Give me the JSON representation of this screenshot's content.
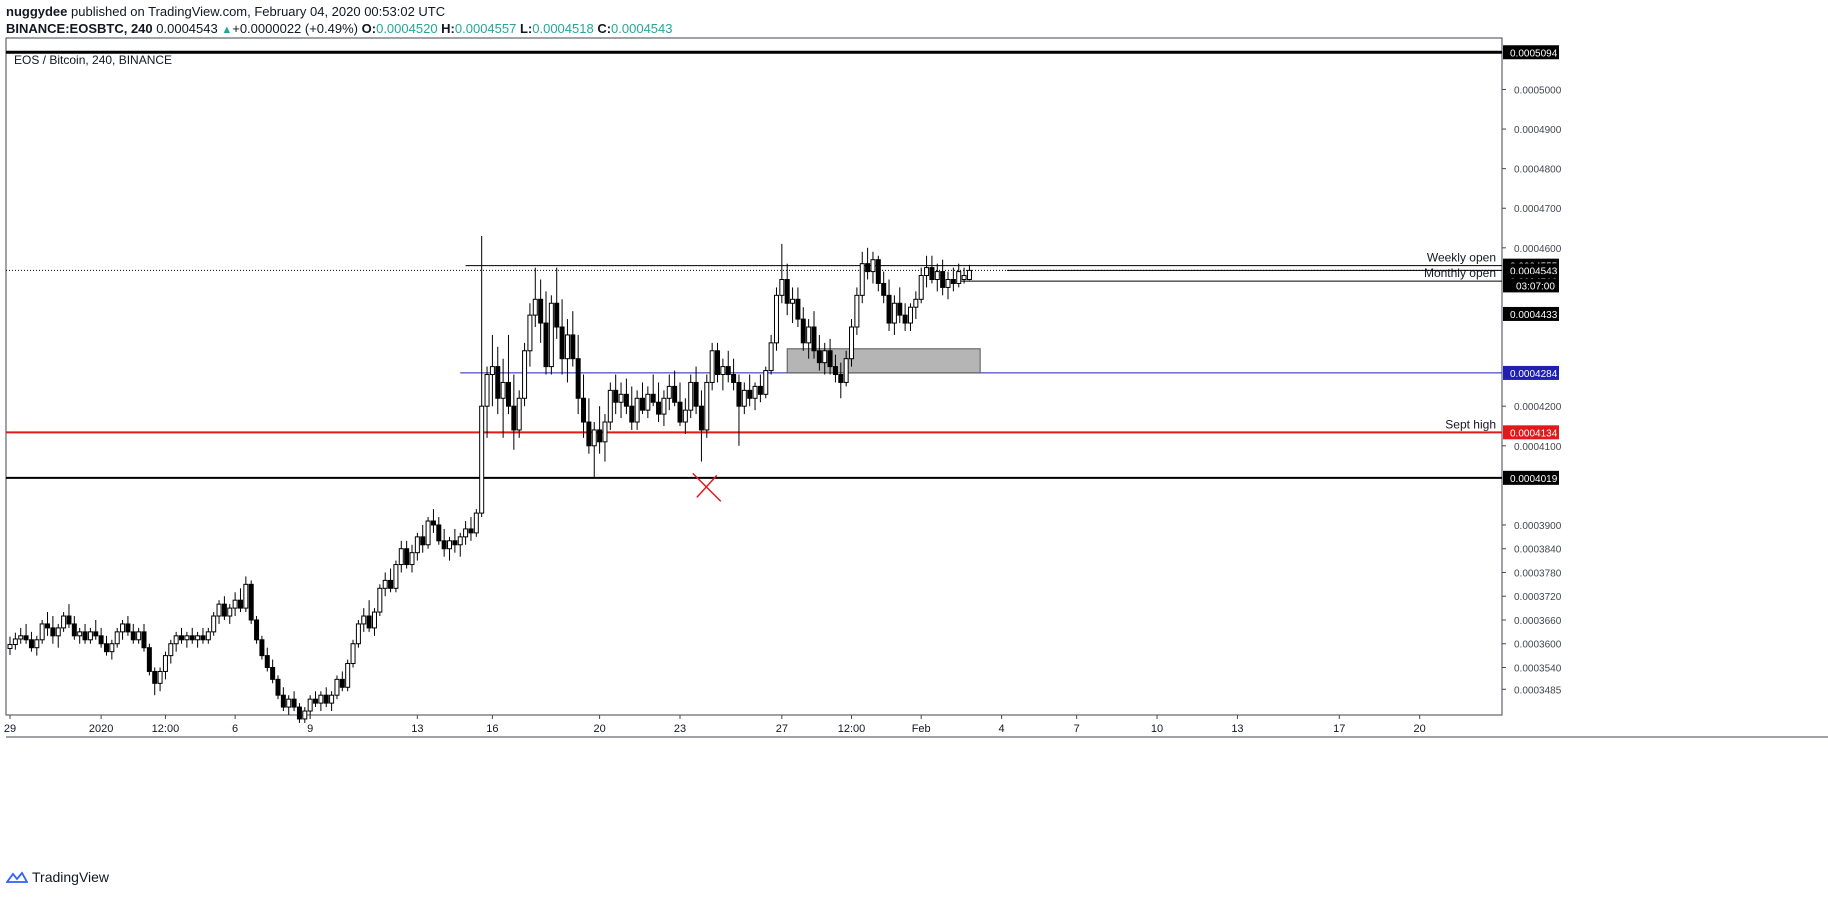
{
  "header": {
    "author": "nuggydee",
    "published": "published on TradingView.com, February 04, 2020 00:53:02 UTC",
    "symbol": "BINANCE:EOSBTC, 240",
    "last": "0.0004543",
    "change": "+0.0000022 (+0.49%)",
    "o_label": "O:",
    "o_value": "0.0004520",
    "h_label": "H:",
    "h_value": "0.0004557",
    "l_label": "L:",
    "l_value": "0.0004518",
    "c_label": "C:",
    "c_value": "0.0004543"
  },
  "chart_data": {
    "type": "candlestick",
    "title": "EOS / Bitcoin, 240, BINANCE",
    "ylim": [
      0.000342,
      0.000513
    ],
    "y_ticks": [
      {
        "v": 0.0005,
        "label": "0.0005000"
      },
      {
        "v": 0.00049,
        "label": "0.0004900"
      },
      {
        "v": 0.00048,
        "label": "0.0004800"
      },
      {
        "v": 0.00047,
        "label": "0.0004700"
      },
      {
        "v": 0.00046,
        "label": "0.0004600"
      },
      {
        "v": 0.00042,
        "label": "0.0004200"
      },
      {
        "v": 0.00041,
        "label": "0.0004100"
      },
      {
        "v": 0.00039,
        "label": "0.0003900"
      },
      {
        "v": 0.000384,
        "label": "0.0003840"
      },
      {
        "v": 0.000378,
        "label": "0.0003780"
      },
      {
        "v": 0.000372,
        "label": "0.0003720"
      },
      {
        "v": 0.000366,
        "label": "0.0003660"
      },
      {
        "v": 0.00036,
        "label": "0.0003600"
      },
      {
        "v": 0.000354,
        "label": "0.0003540"
      },
      {
        "v": 0.0003485,
        "label": "0.0003485"
      }
    ],
    "x_ticks": [
      {
        "i": 0,
        "label": "29"
      },
      {
        "i": 17,
        "label": "2020"
      },
      {
        "i": 29,
        "label": "12:00"
      },
      {
        "i": 42,
        "label": "6"
      },
      {
        "i": 56,
        "label": "9"
      },
      {
        "i": 76,
        "label": "13"
      },
      {
        "i": 90,
        "label": "16"
      },
      {
        "i": 110,
        "label": "20"
      },
      {
        "i": 125,
        "label": "23"
      },
      {
        "i": 144,
        "label": "27"
      },
      {
        "i": 157,
        "label": "12:00"
      },
      {
        "i": 170,
        "label": "Feb"
      },
      {
        "i": 185,
        "label": "4"
      },
      {
        "i": 199,
        "label": "7"
      },
      {
        "i": 214,
        "label": "10"
      },
      {
        "i": 229,
        "label": "13"
      },
      {
        "i": 248,
        "label": "17"
      },
      {
        "i": 263,
        "label": "20"
      }
    ],
    "levels": [
      {
        "v": 0.0005094,
        "label": "0.0005094",
        "color": "#000000",
        "width": 3,
        "text": ""
      },
      {
        "v": 0.0004555,
        "label": "0.0004555",
        "color": "#000000",
        "width": 1,
        "text": "Weekly open"
      },
      {
        "v": 0.0004543,
        "label": "0.0004543",
        "color": "#000000",
        "width": 1,
        "text": ""
      },
      {
        "v": 0.0004516,
        "label": "0.0004516",
        "color": "#000000",
        "width": 1,
        "text": "Monthly open"
      },
      {
        "v": 0.0004433,
        "label": "0.0004433",
        "color": "#000000",
        "width": 1,
        "text": ""
      },
      {
        "v": 0.0004284,
        "label": "0.0004284",
        "color": "#1f1fb4",
        "width": 1,
        "text": ""
      },
      {
        "v": 0.0004134,
        "label": "0.0004134",
        "color": "#e01a1a",
        "width": 2,
        "text": "Sept high"
      },
      {
        "v": 0.0004019,
        "label": "0.0004019",
        "color": "#000000",
        "width": 2,
        "text": ""
      }
    ],
    "countdown": "03:07:00",
    "zone": {
      "i_start": 145,
      "i_end": 181,
      "top": 0.0004345,
      "bottom": 0.0004284
    },
    "marker_x": {
      "i": 130,
      "v": 0.0003995
    },
    "candles": [
      [
        0.0003588,
        0.0003618,
        0.0003572,
        0.0003598
      ],
      [
        0.0003598,
        0.0003628,
        0.0003585,
        0.0003612
      ],
      [
        0.0003612,
        0.000364,
        0.00036,
        0.000362
      ],
      [
        0.000362,
        0.000365,
        0.00036,
        0.000361
      ],
      [
        0.000361,
        0.000363,
        0.000358,
        0.000359
      ],
      [
        0.000359,
        0.000362,
        0.000357,
        0.000361
      ],
      [
        0.000361,
        0.000366,
        0.00036,
        0.000365
      ],
      [
        0.000365,
        0.000368,
        0.000362,
        0.000364
      ],
      [
        0.000364,
        0.000367,
        0.00036,
        0.000362
      ],
      [
        0.000362,
        0.000365,
        0.000359,
        0.000364
      ],
      [
        0.000364,
        0.000368,
        0.000363,
        0.000367
      ],
      [
        0.000367,
        0.00037,
        0.000364,
        0.000365
      ],
      [
        0.000365,
        0.000367,
        0.000361,
        0.000362
      ],
      [
        0.000362,
        0.000364,
        0.00036,
        0.000363
      ],
      [
        0.000363,
        0.000365,
        0.00036,
        0.000361
      ],
      [
        0.000361,
        0.000364,
        0.00036,
        0.000363
      ],
      [
        0.000363,
        0.000366,
        0.000361,
        0.000362
      ],
      [
        0.000362,
        0.000364,
        0.000359,
        0.00036
      ],
      [
        0.00036,
        0.000362,
        0.000357,
        0.000358
      ],
      [
        0.000358,
        0.000361,
        0.000356,
        0.00036
      ],
      [
        0.00036,
        0.000364,
        0.000359,
        0.000363
      ],
      [
        0.000363,
        0.000366,
        0.000361,
        0.000365
      ],
      [
        0.000365,
        0.000367,
        0.000362,
        0.000363
      ],
      [
        0.000363,
        0.000365,
        0.00036,
        0.000361
      ],
      [
        0.000361,
        0.000364,
        0.00036,
        0.000363
      ],
      [
        0.000363,
        0.000365,
        0.000358,
        0.000359
      ],
      [
        0.000359,
        0.00036,
        0.000352,
        0.000353
      ],
      [
        0.000353,
        0.000354,
        0.000347,
        0.00035
      ],
      [
        0.00035,
        0.000354,
        0.000348,
        0.000353
      ],
      [
        0.000353,
        0.000358,
        0.000351,
        0.000357
      ],
      [
        0.000357,
        0.000361,
        0.000355,
        0.00036
      ],
      [
        0.00036,
        0.000363,
        0.000358,
        0.000362
      ],
      [
        0.000362,
        0.000364,
        0.00036,
        0.000361
      ],
      [
        0.000361,
        0.000363,
        0.000359,
        0.000362
      ],
      [
        0.000362,
        0.000364,
        0.00036,
        0.000361
      ],
      [
        0.000361,
        0.000363,
        0.000359,
        0.000362
      ],
      [
        0.000362,
        0.000364,
        0.00036,
        0.000361
      ],
      [
        0.000361,
        0.000364,
        0.00036,
        0.000363
      ],
      [
        0.000363,
        0.000368,
        0.000362,
        0.000367
      ],
      [
        0.000367,
        0.000371,
        0.000365,
        0.00037
      ],
      [
        0.00037,
        0.000372,
        0.000366,
        0.000367
      ],
      [
        0.000367,
        0.00037,
        0.000365,
        0.000369
      ],
      [
        0.000369,
        0.000373,
        0.000367,
        0.000371
      ],
      [
        0.000371,
        0.000374,
        0.000368,
        0.000369
      ],
      [
        0.000369,
        0.000377,
        0.000368,
        0.000375
      ],
      [
        0.000375,
        0.000376,
        0.000365,
        0.000366
      ],
      [
        0.000366,
        0.000367,
        0.00036,
        0.000361
      ],
      [
        0.000361,
        0.000362,
        0.000356,
        0.000357
      ],
      [
        0.000357,
        0.000359,
        0.000353,
        0.000354
      ],
      [
        0.000354,
        0.000356,
        0.00035,
        0.000351
      ],
      [
        0.000351,
        0.000352,
        0.000346,
        0.000347
      ],
      [
        0.000347,
        0.000349,
        0.000343,
        0.000344
      ],
      [
        0.000344,
        0.000347,
        0.000342,
        0.000346
      ],
      [
        0.000346,
        0.000348,
        0.000343,
        0.000344
      ],
      [
        0.000344,
        0.000345,
        0.00034,
        0.000341
      ],
      [
        0.000341,
        0.000344,
        0.00034,
        0.000343
      ],
      [
        0.000343,
        0.000347,
        0.000341,
        0.000346
      ],
      [
        0.000346,
        0.000348,
        0.000344,
        0.000345
      ],
      [
        0.000345,
        0.000348,
        0.000343,
        0.000347
      ],
      [
        0.000347,
        0.000349,
        0.000344,
        0.000345
      ],
      [
        0.000345,
        0.000348,
        0.000343,
        0.000347
      ],
      [
        0.000347,
        0.000352,
        0.000346,
        0.000351
      ],
      [
        0.000351,
        0.000353,
        0.000348,
        0.000349
      ],
      [
        0.000349,
        0.000356,
        0.000348,
        0.000355
      ],
      [
        0.000355,
        0.000361,
        0.000354,
        0.00036
      ],
      [
        0.00036,
        0.000366,
        0.000359,
        0.000365
      ],
      [
        0.000365,
        0.000369,
        0.000363,
        0.000367
      ],
      [
        0.000367,
        0.000371,
        0.000363,
        0.000364
      ],
      [
        0.000364,
        0.000369,
        0.000362,
        0.000368
      ],
      [
        0.000368,
        0.000375,
        0.000367,
        0.000374
      ],
      [
        0.000374,
        0.000378,
        0.000372,
        0.000376
      ],
      [
        0.000376,
        0.000379,
        0.000373,
        0.000374
      ],
      [
        0.000374,
        0.000381,
        0.000373,
        0.00038
      ],
      [
        0.00038,
        0.000386,
        0.000378,
        0.000384
      ],
      [
        0.000384,
        0.000386,
        0.000379,
        0.00038
      ],
      [
        0.00038,
        0.000385,
        0.000378,
        0.000383
      ],
      [
        0.000383,
        0.000388,
        0.000381,
        0.000387
      ],
      [
        0.000387,
        0.00039,
        0.000383,
        0.000385
      ],
      [
        0.000385,
        0.000392,
        0.000384,
        0.000391
      ],
      [
        0.000391,
        0.000394,
        0.000388,
        0.00039
      ],
      [
        0.00039,
        0.000392,
        0.000385,
        0.000386
      ],
      [
        0.000386,
        0.000389,
        0.000382,
        0.000384
      ],
      [
        0.000384,
        0.000387,
        0.000381,
        0.000386
      ],
      [
        0.000386,
        0.000389,
        0.000383,
        0.000385
      ],
      [
        0.000385,
        0.000388,
        0.000382,
        0.000387
      ],
      [
        0.000387,
        0.000391,
        0.000385,
        0.000389
      ],
      [
        0.000389,
        0.000392,
        0.000386,
        0.000388
      ],
      [
        0.000388,
        0.000394,
        0.000387,
        0.000393
      ],
      [
        0.000393,
        0.000463,
        0.000392,
        0.00042
      ],
      [
        0.00042,
        0.00043,
        0.000412,
        0.000428
      ],
      [
        0.000428,
        0.000438,
        0.00042,
        0.00043
      ],
      [
        0.00043,
        0.000435,
        0.000418,
        0.000422
      ],
      [
        0.000422,
        0.000432,
        0.000412,
        0.000426
      ],
      [
        0.000426,
        0.000438,
        0.000418,
        0.00042
      ],
      [
        0.00042,
        0.000428,
        0.000409,
        0.000414
      ],
      [
        0.000414,
        0.000424,
        0.000412,
        0.000422
      ],
      [
        0.000422,
        0.000436,
        0.00042,
        0.000434
      ],
      [
        0.000434,
        0.000446,
        0.00043,
        0.000443
      ],
      [
        0.000443,
        0.000455,
        0.00044,
        0.000447
      ],
      [
        0.000447,
        0.000452,
        0.000436,
        0.000441
      ],
      [
        0.000441,
        0.000449,
        0.000428,
        0.00043
      ],
      [
        0.00043,
        0.000448,
        0.000428,
        0.000446
      ],
      [
        0.000446,
        0.000455,
        0.000437,
        0.00044
      ],
      [
        0.00044,
        0.000447,
        0.000428,
        0.000432
      ],
      [
        0.000432,
        0.000442,
        0.000426,
        0.000438
      ],
      [
        0.000438,
        0.000444,
        0.00043,
        0.000432
      ],
      [
        0.000432,
        0.000438,
        0.000418,
        0.000422
      ],
      [
        0.000422,
        0.000428,
        0.000412,
        0.000416
      ],
      [
        0.000416,
        0.000422,
        0.000408,
        0.00041
      ],
      [
        0.00041,
        0.000416,
        0.000402,
        0.000414
      ],
      [
        0.000414,
        0.00042,
        0.000408,
        0.000411
      ],
      [
        0.000411,
        0.000418,
        0.000406,
        0.000416
      ],
      [
        0.000416,
        0.000426,
        0.000414,
        0.000424
      ],
      [
        0.000424,
        0.000428,
        0.000418,
        0.000421
      ],
      [
        0.000421,
        0.000426,
        0.000417,
        0.000423
      ],
      [
        0.000423,
        0.000427,
        0.000418,
        0.00042
      ],
      [
        0.00042,
        0.000425,
        0.000414,
        0.000416
      ],
      [
        0.000416,
        0.000424,
        0.000414,
        0.000422
      ],
      [
        0.000422,
        0.000426,
        0.000418,
        0.000419
      ],
      [
        0.000419,
        0.000425,
        0.000417,
        0.000423
      ],
      [
        0.000423,
        0.000428,
        0.00042,
        0.000421
      ],
      [
        0.000421,
        0.000426,
        0.000416,
        0.000418
      ],
      [
        0.000418,
        0.000424,
        0.000415,
        0.000422
      ],
      [
        0.000422,
        0.000428,
        0.000419,
        0.000425
      ],
      [
        0.000425,
        0.000429,
        0.00042,
        0.000421
      ],
      [
        0.000421,
        0.000426,
        0.000415,
        0.000416
      ],
      [
        0.000416,
        0.000422,
        0.000413,
        0.000419
      ],
      [
        0.000419,
        0.000428,
        0.000417,
        0.000426
      ],
      [
        0.000426,
        0.00043,
        0.000418,
        0.00042
      ],
      [
        0.00042,
        0.000424,
        0.000406,
        0.000414
      ],
      [
        0.000414,
        0.000428,
        0.000412,
        0.000426
      ],
      [
        0.000426,
        0.000436,
        0.000424,
        0.000434
      ],
      [
        0.000434,
        0.000436,
        0.000426,
        0.000428
      ],
      [
        0.000428,
        0.000432,
        0.000424,
        0.00043
      ],
      [
        0.00043,
        0.000434,
        0.000426,
        0.000428
      ],
      [
        0.000428,
        0.000432,
        0.000424,
        0.000426
      ],
      [
        0.000426,
        0.000428,
        0.00041,
        0.00042
      ],
      [
        0.00042,
        0.000426,
        0.000418,
        0.000424
      ],
      [
        0.000424,
        0.000428,
        0.00042,
        0.000422
      ],
      [
        0.000422,
        0.000426,
        0.000419,
        0.000425
      ],
      [
        0.000425,
        0.000428,
        0.000421,
        0.000423
      ],
      [
        0.000423,
        0.00043,
        0.000422,
        0.000429
      ],
      [
        0.000429,
        0.000438,
        0.000428,
        0.000436
      ],
      [
        0.000436,
        0.00045,
        0.000434,
        0.000448
      ],
      [
        0.000448,
        0.000461,
        0.000446,
        0.000452
      ],
      [
        0.000452,
        0.000456,
        0.000443,
        0.000446
      ],
      [
        0.000446,
        0.00045,
        0.000441,
        0.000447
      ],
      [
        0.000447,
        0.00045,
        0.00044,
        0.000442
      ],
      [
        0.000442,
        0.000445,
        0.000434,
        0.000436
      ],
      [
        0.000436,
        0.000442,
        0.000432,
        0.00044
      ],
      [
        0.00044,
        0.000444,
        0.000432,
        0.000434
      ],
      [
        0.000434,
        0.000438,
        0.000429,
        0.000431
      ],
      [
        0.000431,
        0.000436,
        0.000428,
        0.000434
      ],
      [
        0.000434,
        0.000437,
        0.000428,
        0.00043
      ],
      [
        0.00043,
        0.000433,
        0.000426,
        0.000428
      ],
      [
        0.000428,
        0.000431,
        0.000422,
        0.000426
      ],
      [
        0.000426,
        0.000434,
        0.000425,
        0.000432
      ],
      [
        0.000432,
        0.000442,
        0.00043,
        0.00044
      ],
      [
        0.00044,
        0.00045,
        0.000438,
        0.000448
      ],
      [
        0.000448,
        0.000459,
        0.000446,
        0.000456
      ],
      [
        0.000456,
        0.00046,
        0.000452,
        0.000454
      ],
      [
        0.000454,
        0.000459,
        0.000451,
        0.000457
      ],
      [
        0.000457,
        0.000458,
        0.000449,
        0.000451
      ],
      [
        0.000451,
        0.000454,
        0.000446,
        0.000448
      ],
      [
        0.000448,
        0.000452,
        0.000439,
        0.000441
      ],
      [
        0.000441,
        0.000448,
        0.000438,
        0.000446
      ],
      [
        0.000446,
        0.00045,
        0.000441,
        0.000443
      ],
      [
        0.000443,
        0.000446,
        0.000439,
        0.000441
      ],
      [
        0.000441,
        0.000446,
        0.000439,
        0.000445
      ],
      [
        0.000445,
        0.000449,
        0.000442,
        0.000447
      ],
      [
        0.000447,
        0.000455,
        0.000446,
        0.000453
      ],
      [
        0.000453,
        0.000458,
        0.00045,
        0.000455
      ],
      [
        0.000455,
        0.000458,
        0.000451,
        0.000452
      ],
      [
        0.000452,
        0.000456,
        0.000449,
        0.000454
      ],
      [
        0.000454,
        0.000457,
        0.000448,
        0.00045
      ],
      [
        0.00045,
        0.000454,
        0.000447,
        0.000452
      ],
      [
        0.000452,
        0.000455,
        0.000449,
        0.000451
      ],
      [
        0.000451,
        0.000456,
        0.00045,
        0.000454
      ],
      [
        0.000452,
        0.000455,
        0.000451,
        0.000453
      ],
      [
        0.000452,
        0.0004557,
        0.0004518,
        0.0004543
      ]
    ]
  },
  "footer": {
    "brand": "TradingView"
  },
  "colors": {
    "up": "#ffffff",
    "down": "#000000",
    "wick": "#000000",
    "price_green": "#26a69a"
  }
}
